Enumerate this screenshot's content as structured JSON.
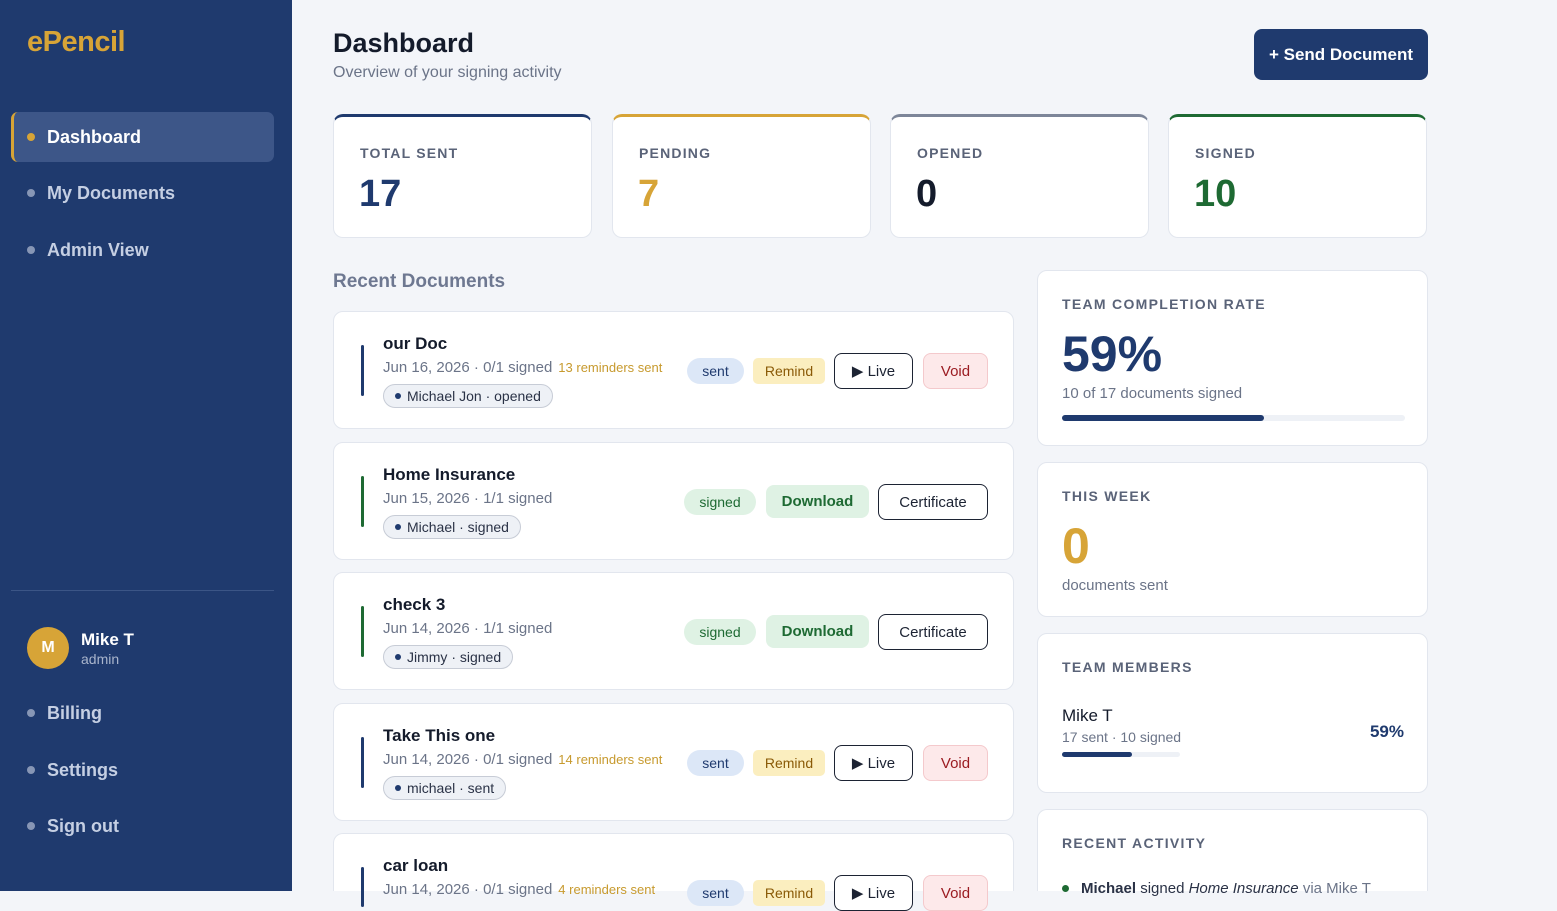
{
  "app": {
    "logo": "ePencil"
  },
  "sidebar": {
    "nav": [
      {
        "label": "Dashboard",
        "active": true
      },
      {
        "label": "My Documents",
        "active": false
      },
      {
        "label": "Admin View",
        "active": false
      }
    ],
    "user": {
      "initial": "M",
      "name": "Mike T",
      "role": "admin"
    },
    "bottom_nav": [
      {
        "label": "Billing"
      },
      {
        "label": "Settings"
      },
      {
        "label": "Sign out"
      }
    ]
  },
  "header": {
    "title": "Dashboard",
    "subtitle": "Overview of your signing activity",
    "send_button": "+ Send Document"
  },
  "stats": [
    {
      "label": "TOTAL SENT",
      "value": "17",
      "color": "#1f3a6e"
    },
    {
      "label": "PENDING",
      "value": "7",
      "color": "#d7a437"
    },
    {
      "label": "OPENED",
      "value": "0",
      "color": "#6b7488"
    },
    {
      "label": "SIGNED",
      "value": "10",
      "color": "#1e6a33"
    }
  ],
  "recent_documents": {
    "title": "Recent Documents",
    "items": [
      {
        "title": "our Doc",
        "meta": "Jun 16, 2026 · 0/1 signed",
        "reminders": "13 reminders sent",
        "recipient": "Michael Jon · opened",
        "status": "sent",
        "actions": [
          "Remind",
          "▶ Live",
          "Void"
        ]
      },
      {
        "title": "Home Insurance",
        "meta": "Jun 15, 2026 · 1/1 signed",
        "reminders": "",
        "recipient": "Michael · signed",
        "status": "signed",
        "actions": [
          "Download",
          "Certificate"
        ]
      },
      {
        "title": "check 3",
        "meta": "Jun 14, 2026 · 1/1 signed",
        "reminders": "",
        "recipient": "Jimmy · signed",
        "status": "signed",
        "actions": [
          "Download",
          "Certificate"
        ]
      },
      {
        "title": "Take This one",
        "meta": "Jun 14, 2026 · 0/1 signed",
        "reminders": "14 reminders sent",
        "recipient": "michael · sent",
        "status": "sent",
        "actions": [
          "Remind",
          "▶ Live",
          "Void"
        ]
      },
      {
        "title": "car loan",
        "meta": "Jun 14, 2026 · 0/1 signed",
        "reminders": "4 reminders sent",
        "recipient": "",
        "status": "sent",
        "actions": [
          "Remind",
          "▶ Live",
          "Void"
        ]
      }
    ]
  },
  "team_completion": {
    "label": "TEAM COMPLETION RATE",
    "value": "59%",
    "sub": "10 of 17 documents signed",
    "progress": 0.59
  },
  "this_week": {
    "label": "THIS WEEK",
    "value": "0",
    "sub": "documents sent"
  },
  "team_members": {
    "label": "TEAM MEMBERS",
    "members": [
      {
        "name": "Mike T",
        "stats": "17 sent · 10 signed",
        "rate": "59%",
        "progress": 0.59
      }
    ]
  },
  "recent_activity": {
    "label": "RECENT ACTIVITY",
    "items": [
      {
        "actor": "Michael",
        "verb": "signed",
        "doc": "Home Insurance",
        "via": "via Mike T"
      }
    ]
  }
}
